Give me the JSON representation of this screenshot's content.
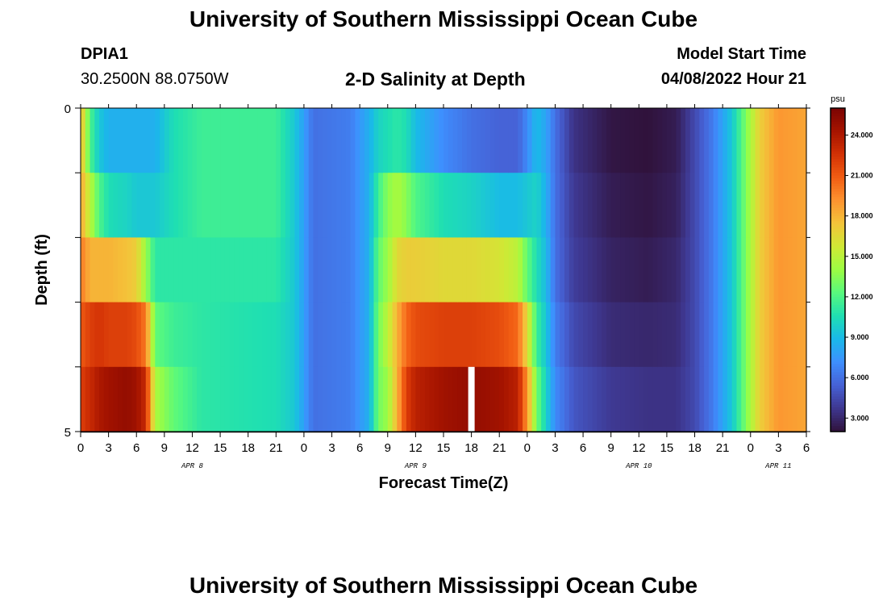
{
  "header": {
    "title": "University of Southern Mississippi Ocean Cube",
    "station_id": "DPIA1",
    "coordinates": "30.2500N  88.0750W",
    "plot_title": "2-D Salinity at Depth",
    "model_start_label": "Model Start Time",
    "model_start_value": "04/08/2022 Hour 21"
  },
  "footer": {
    "title": "University of Southern Mississippi Ocean Cube"
  },
  "colors": {
    "scale": [
      "#30123b",
      "#3e378f",
      "#4661d5",
      "#3e8ffe",
      "#1ab9e9",
      "#1fdfb2",
      "#58f97d",
      "#9cfd43",
      "#cfe935",
      "#f3c43a",
      "#fd9330",
      "#f15d13",
      "#d23105",
      "#a61400",
      "#7a0403"
    ]
  },
  "chart_data": {
    "type": "heatmap",
    "title": "2-D Salinity at Depth",
    "xlabel": "Forecast Time(Z)",
    "ylabel": "Depth (ft)",
    "colorbar_unit": "psu",
    "value_range": [
      2.0,
      26.0
    ],
    "colorbar_ticks": [
      "3.000",
      "6.000",
      "9.000",
      "12.000",
      "15.000",
      "18.000",
      "21.000",
      "24.000"
    ],
    "colorbar_tick_values": [
      3,
      6,
      9,
      12,
      15,
      18,
      21,
      24
    ],
    "xlim": [
      0,
      78
    ],
    "ylim": [
      0,
      5
    ],
    "x_tick_labels": [
      "0",
      "3",
      "6",
      "9",
      "12",
      "15",
      "18",
      "21",
      "0",
      "3",
      "6",
      "9",
      "12",
      "15",
      "18",
      "21",
      "0",
      "3",
      "6",
      "9",
      "12",
      "15",
      "18",
      "21",
      "0",
      "3",
      "6"
    ],
    "date_labels": [
      {
        "text": "APR 8",
        "x": 12
      },
      {
        "text": "APR 9",
        "x": 36
      },
      {
        "text": "APR 10",
        "x": 60
      },
      {
        "text": "APR 11",
        "x": 75
      }
    ],
    "y_tick_labels": [
      {
        "text": "0",
        "depth": 0
      },
      {
        "text": "5",
        "depth": 5
      }
    ],
    "depth_layers": 5,
    "keypoints": [
      {
        "x": 0,
        "layers": [
          18.0,
          18.5,
          20.0,
          21.0,
          22.0
        ]
      },
      {
        "x": 1,
        "layers": [
          12.0,
          15.0,
          18.0,
          22.0,
          23.0
        ]
      },
      {
        "x": 2,
        "layers": [
          9.5,
          12.0,
          18.0,
          22.5,
          24.0
        ]
      },
      {
        "x": 3,
        "layers": [
          8.5,
          10.5,
          18.0,
          22.0,
          24.5
        ]
      },
      {
        "x": 5,
        "layers": [
          8.5,
          10.0,
          17.5,
          22.0,
          25.0
        ]
      },
      {
        "x": 6,
        "layers": [
          8.5,
          9.5,
          17.0,
          21.5,
          24.5
        ]
      },
      {
        "x": 7,
        "layers": [
          8.5,
          9.5,
          14.0,
          20.0,
          23.0
        ]
      },
      {
        "x": 8,
        "layers": [
          8.5,
          9.5,
          11.0,
          12.5,
          14.5
        ]
      },
      {
        "x": 10,
        "layers": [
          10.5,
          10.5,
          11.0,
          11.5,
          12.5
        ]
      },
      {
        "x": 13,
        "layers": [
          11.5,
          11.5,
          11.0,
          11.0,
          11.0
        ]
      },
      {
        "x": 21,
        "layers": [
          11.5,
          11.5,
          11.0,
          10.5,
          10.5
        ]
      },
      {
        "x": 23,
        "layers": [
          9.5,
          9.5,
          9.5,
          9.5,
          9.5
        ]
      },
      {
        "x": 25,
        "layers": [
          6.0,
          6.0,
          6.0,
          6.0,
          6.0
        ]
      },
      {
        "x": 29,
        "layers": [
          6.5,
          6.5,
          6.5,
          6.5,
          6.5
        ]
      },
      {
        "x": 31,
        "layers": [
          8.5,
          8.5,
          8.5,
          8.5,
          8.5
        ]
      },
      {
        "x": 32,
        "layers": [
          10.0,
          11.5,
          12.5,
          13.0,
          13.0
        ]
      },
      {
        "x": 33,
        "layers": [
          10.5,
          13.5,
          14.0,
          15.0,
          14.0
        ]
      },
      {
        "x": 34,
        "layers": [
          11.0,
          14.5,
          16.5,
          18.0,
          18.0
        ]
      },
      {
        "x": 35,
        "layers": [
          10.5,
          13.5,
          17.0,
          20.5,
          22.0
        ]
      },
      {
        "x": 36,
        "layers": [
          9.0,
          12.0,
          17.0,
          21.5,
          23.5
        ]
      },
      {
        "x": 39,
        "layers": [
          7.0,
          10.5,
          16.5,
          22.0,
          24.5
        ]
      },
      {
        "x": 42,
        "layers": [
          6.0,
          10.0,
          16.5,
          22.0,
          25.0
        ]
      },
      {
        "x": 45,
        "layers": [
          5.5,
          9.0,
          16.0,
          21.5,
          24.5
        ]
      },
      {
        "x": 47,
        "layers": [
          5.5,
          9.0,
          15.0,
          20.5,
          23.5
        ]
      },
      {
        "x": 48,
        "layers": [
          7.0,
          9.5,
          12.5,
          16.5,
          19.0
        ]
      },
      {
        "x": 49,
        "layers": [
          9.0,
          10.0,
          10.5,
          11.5,
          13.0
        ]
      },
      {
        "x": 50,
        "layers": [
          8.0,
          8.5,
          9.0,
          9.5,
          10.0
        ]
      },
      {
        "x": 51,
        "layers": [
          6.0,
          6.0,
          6.0,
          6.5,
          7.0
        ]
      },
      {
        "x": 53,
        "layers": [
          3.5,
          3.8,
          4.0,
          4.5,
          5.0
        ]
      },
      {
        "x": 57,
        "layers": [
          2.2,
          2.5,
          2.8,
          3.2,
          3.8
        ]
      },
      {
        "x": 61,
        "layers": [
          2.0,
          2.2,
          2.5,
          3.0,
          3.5
        ]
      },
      {
        "x": 64,
        "layers": [
          2.5,
          2.7,
          3.0,
          3.2,
          3.5
        ]
      },
      {
        "x": 66,
        "layers": [
          4.5,
          4.5,
          4.5,
          4.5,
          4.5
        ]
      },
      {
        "x": 68,
        "layers": [
          6.5,
          6.5,
          6.5,
          6.5,
          6.5
        ]
      },
      {
        "x": 70,
        "layers": [
          9.5,
          9.5,
          9.5,
          9.5,
          9.5
        ]
      },
      {
        "x": 71,
        "layers": [
          12.0,
          12.0,
          12.0,
          12.0,
          12.0
        ]
      },
      {
        "x": 72,
        "layers": [
          14.5,
          14.5,
          14.5,
          14.5,
          14.5
        ]
      },
      {
        "x": 73,
        "layers": [
          17.0,
          17.0,
          17.0,
          17.0,
          17.0
        ]
      },
      {
        "x": 75,
        "layers": [
          19.0,
          19.0,
          19.0,
          19.0,
          19.0
        ]
      },
      {
        "x": 78,
        "layers": [
          18.5,
          18.5,
          18.5,
          18.5,
          18.5
        ]
      }
    ],
    "missing_cells": [
      {
        "x": 42,
        "layer": 4
      }
    ]
  }
}
